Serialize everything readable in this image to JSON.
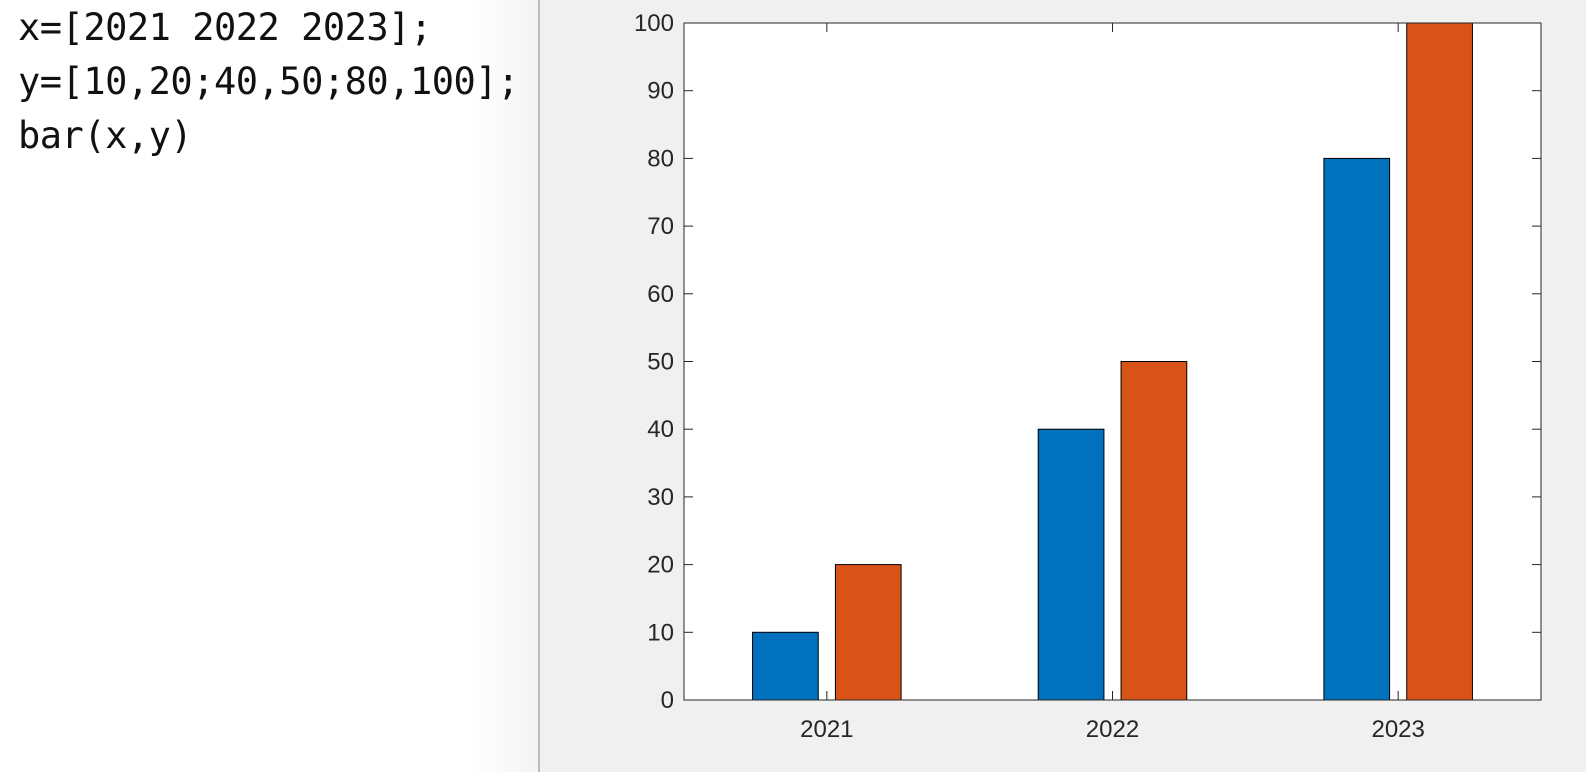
{
  "editor": {
    "lines": [
      "x=[2021 2022 2023];",
      "y=[10,20;40,50;80,100];",
      "bar(x,y)"
    ]
  },
  "colors": {
    "series1": "#0072BD",
    "series2": "#D95319",
    "axes_background": "#ffffff",
    "figure_background": "#f0f0f0"
  },
  "chart_data": {
    "type": "bar",
    "categories": [
      "2021",
      "2022",
      "2023"
    ],
    "series": [
      {
        "values": [
          10,
          40,
          80
        ]
      },
      {
        "values": [
          20,
          50,
          100
        ]
      }
    ],
    "title": "",
    "xlabel": "",
    "ylabel": "",
    "ylim": [
      0,
      100
    ],
    "yticks": [
      0,
      10,
      20,
      30,
      40,
      50,
      60,
      70,
      80,
      90,
      100
    ],
    "grid": false,
    "legend": "none"
  }
}
